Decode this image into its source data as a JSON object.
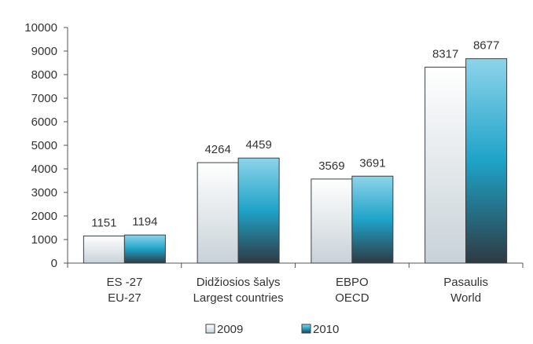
{
  "chart_data": {
    "type": "bar",
    "categories": [
      [
        "ES -27",
        "EU-27"
      ],
      [
        "Didžiosios šalys",
        "Largest countries"
      ],
      [
        "EBPO",
        "OECD"
      ],
      [
        "Pasaulis",
        "World"
      ]
    ],
    "series": [
      {
        "name": "2009",
        "values": [
          1151,
          4264,
          3569,
          8317
        ]
      },
      {
        "name": "2010",
        "values": [
          1194,
          4459,
          3691,
          8677
        ]
      }
    ],
    "ylim": [
      0,
      10000
    ],
    "yticks": [
      "0",
      "1000",
      "2000",
      "3000",
      "4000",
      "5000",
      "6000",
      "7000",
      "8000",
      "9000",
      "10000"
    ],
    "data_labels": true,
    "grid": false,
    "legend_position": "bottom"
  },
  "colors": {
    "series_2009_top": "#ffffff",
    "series_2009_bottom": "#c8d2d8",
    "series_2010_top": "#8ed4ea",
    "series_2010_mid": "#1ea3c8",
    "series_2010_bottom": "#2e3a42",
    "axis": "#555555",
    "text": "#333333"
  }
}
